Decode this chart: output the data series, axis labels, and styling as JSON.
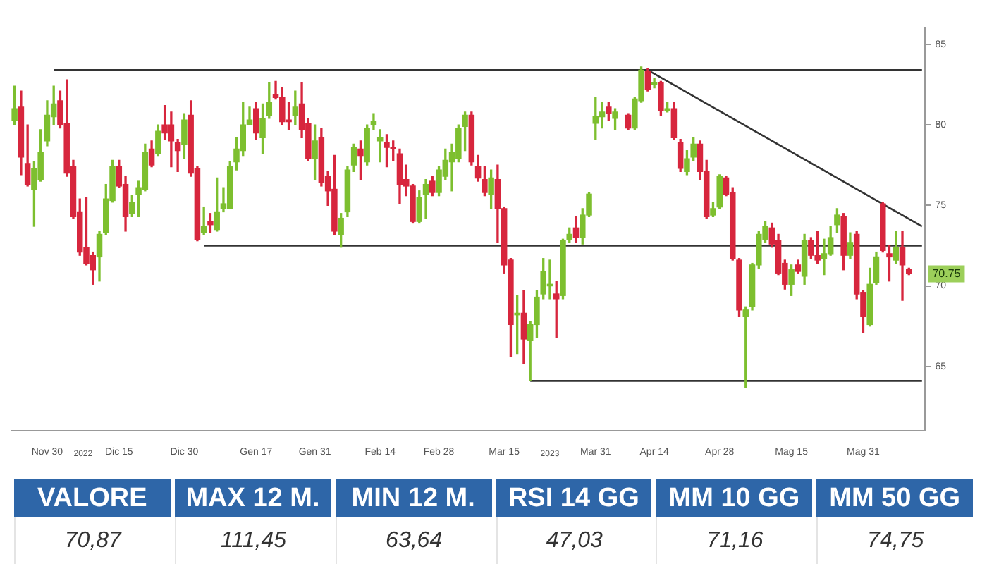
{
  "chart_data": [
    {
      "type": "candlestick",
      "categories": [
        null,
        null,
        null,
        null,
        null,
        "Nov 30",
        null,
        null,
        null,
        null,
        null,
        null,
        null,
        null,
        null,
        null,
        "Dic 15",
        null,
        null,
        null,
        null,
        null,
        null,
        null,
        null,
        null,
        "Dic 30",
        null,
        null,
        null,
        null,
        null,
        null,
        null,
        null,
        null,
        null,
        "Gen 17",
        null,
        null,
        null,
        null,
        null,
        null,
        null,
        null,
        "Gen 31",
        null,
        null,
        null,
        null,
        null,
        null,
        null,
        null,
        null,
        "Feb 14",
        null,
        null,
        null,
        null,
        null,
        null,
        null,
        null,
        "Feb 28",
        null,
        null,
        null,
        null,
        null,
        null,
        null,
        null,
        null,
        "Mar 15",
        null,
        null,
        null,
        null,
        null,
        null,
        null,
        null,
        null,
        null,
        null,
        null,
        null,
        "Mar 31",
        null,
        null,
        null,
        null,
        null,
        null,
        null,
        null,
        "Apr 14",
        null,
        null,
        null,
        null,
        null,
        null,
        null,
        null,
        null,
        "Apr 28",
        null,
        null,
        null,
        null,
        null,
        null,
        null,
        null,
        null,
        null,
        "Mag 15",
        null,
        null,
        null,
        null,
        null,
        null,
        null,
        null,
        null,
        null,
        "Mag 31",
        null,
        null,
        null,
        null,
        null,
        null,
        null,
        null,
        null
      ],
      "ohlc": [
        [
          80.3,
          82.4,
          80.0,
          81.0
        ],
        [
          81.1,
          82.1,
          76.9,
          78.0
        ],
        [
          77.6,
          80.0,
          76.2,
          76.3
        ],
        [
          76.0,
          77.7,
          73.7,
          77.3
        ],
        [
          76.6,
          79.7,
          76.5,
          78.3
        ],
        [
          79.0,
          81.5,
          78.7,
          80.6
        ],
        [
          80.5,
          82.4,
          80.0,
          81.3
        ],
        [
          81.5,
          82.1,
          79.8,
          80.0
        ],
        [
          80.1,
          82.8,
          76.8,
          77.0
        ],
        [
          77.4,
          77.8,
          74.2,
          74.3
        ],
        [
          74.6,
          75.4,
          71.9,
          72.1
        ],
        [
          72.4,
          75.5,
          71.3,
          71.4
        ],
        [
          71.9,
          72.1,
          70.1,
          71.0
        ],
        [
          71.8,
          73.4,
          70.3,
          73.2
        ],
        [
          73.3,
          76.3,
          73.2,
          75.4
        ],
        [
          75.3,
          77.8,
          75.2,
          77.4
        ],
        [
          77.4,
          77.8,
          76.1,
          76.2
        ],
        [
          76.3,
          76.8,
          73.4,
          74.3
        ],
        [
          74.5,
          75.6,
          74.3,
          75.2
        ],
        [
          75.7,
          76.5,
          74.3,
          76.1
        ],
        [
          76.0,
          78.8,
          75.9,
          78.3
        ],
        [
          78.5,
          79.0,
          77.4,
          77.5
        ],
        [
          78.2,
          80.0,
          78.1,
          79.6
        ],
        [
          80.0,
          81.2,
          79.1,
          79.5
        ],
        [
          80.0,
          80.8,
          77.4,
          79.0
        ],
        [
          78.9,
          79.1,
          77.1,
          78.4
        ],
        [
          78.8,
          80.7,
          77.9,
          80.3
        ],
        [
          80.6,
          81.5,
          76.8,
          77.0
        ],
        [
          77.3,
          77.4,
          72.8,
          72.9
        ],
        [
          73.3,
          74.9,
          73.2,
          73.7
        ],
        [
          74.0,
          74.5,
          73.3,
          73.8
        ],
        [
          73.5,
          76.7,
          73.4,
          74.6
        ],
        [
          74.8,
          76.1,
          74.6,
          75.1
        ],
        [
          74.8,
          77.7,
          74.8,
          77.4
        ],
        [
          77.7,
          79.2,
          77.2,
          78.5
        ],
        [
          78.4,
          81.4,
          78.1,
          80.0
        ],
        [
          80.0,
          81.1,
          80.0,
          80.3
        ],
        [
          81.0,
          81.4,
          79.1,
          79.5
        ],
        [
          79.2,
          81.3,
          78.2,
          80.4
        ],
        [
          80.6,
          82.6,
          80.4,
          81.4
        ],
        [
          81.9,
          82.7,
          81.6,
          81.7
        ],
        [
          81.7,
          82.3,
          80.0,
          80.2
        ],
        [
          80.3,
          81.4,
          79.7,
          80.2
        ],
        [
          80.6,
          82.1,
          80.0,
          81.1
        ],
        [
          81.3,
          82.6,
          79.2,
          79.7
        ],
        [
          80.1,
          80.4,
          77.8,
          77.9
        ],
        [
          77.9,
          80.0,
          76.6,
          79.0
        ],
        [
          79.2,
          79.8,
          76.2,
          76.4
        ],
        [
          76.8,
          77.1,
          75.0,
          75.9
        ],
        [
          76.0,
          78.1,
          73.2,
          73.4
        ],
        [
          73.2,
          74.5,
          72.4,
          74.2
        ],
        [
          74.6,
          77.4,
          74.3,
          77.2
        ],
        [
          77.5,
          78.8,
          77.1,
          78.6
        ],
        [
          78.5,
          79.0,
          76.6,
          78.1
        ],
        [
          77.7,
          80.0,
          77.5,
          79.8
        ],
        [
          80.0,
          80.7,
          79.7,
          80.2
        ],
        [
          79.0,
          79.7,
          77.7,
          79.2
        ],
        [
          78.9,
          79.4,
          77.4,
          78.6
        ],
        [
          78.6,
          79.0,
          77.8,
          78.5
        ],
        [
          78.2,
          78.5,
          75.1,
          76.3
        ],
        [
          76.6,
          77.5,
          75.6,
          76.2
        ],
        [
          76.2,
          76.3,
          73.9,
          74.0
        ],
        [
          74.0,
          75.9,
          73.9,
          75.5
        ],
        [
          75.7,
          76.6,
          74.2,
          76.3
        ],
        [
          76.5,
          76.8,
          75.6,
          75.8
        ],
        [
          75.8,
          77.4,
          75.6,
          77.2
        ],
        [
          76.8,
          78.5,
          76.6,
          77.8
        ],
        [
          77.7,
          78.8,
          75.9,
          78.3
        ],
        [
          77.9,
          80.0,
          77.7,
          79.8
        ],
        [
          79.9,
          80.8,
          78.4,
          80.6
        ],
        [
          80.6,
          80.8,
          77.5,
          77.7
        ],
        [
          77.4,
          78.1,
          76.5,
          76.7
        ],
        [
          76.6,
          77.4,
          75.6,
          75.8
        ],
        [
          75.7,
          77.2,
          74.8,
          76.7
        ],
        [
          76.6,
          77.5,
          72.7,
          74.8
        ],
        [
          74.8,
          74.9,
          70.8,
          71.3
        ],
        [
          71.6,
          71.7,
          65.6,
          67.6
        ],
        [
          68.2,
          69.4,
          65.8,
          68.3
        ],
        [
          68.3,
          69.7,
          65.2,
          66.7
        ],
        [
          66.6,
          67.8,
          64.1,
          67.6
        ],
        [
          67.6,
          69.7,
          66.8,
          69.3
        ],
        [
          69.5,
          71.7,
          69.2,
          70.9
        ],
        [
          70.0,
          71.6,
          69.2,
          70.1
        ],
        [
          69.5,
          70.3,
          66.8,
          69.2
        ],
        [
          69.4,
          72.9,
          69.2,
          72.8
        ],
        [
          72.9,
          73.6,
          72.7,
          73.2
        ],
        [
          73.6,
          74.3,
          72.7,
          73.0
        ],
        [
          73.0,
          74.8,
          72.6,
          74.4
        ],
        [
          74.4,
          75.8,
          74.3,
          75.7
        ],
        [
          80.1,
          81.7,
          79.1,
          80.5
        ],
        [
          80.5,
          81.4,
          79.8,
          80.8
        ],
        [
          81.1,
          81.4,
          80.3,
          80.7
        ],
        [
          80.4,
          81.0,
          79.7,
          80.8
        ],
        null,
        [
          80.6,
          80.7,
          79.7,
          79.8
        ],
        [
          79.8,
          81.7,
          79.7,
          81.6
        ],
        [
          81.5,
          83.6,
          81.4,
          83.4
        ],
        [
          83.3,
          83.5,
          82.1,
          82.2
        ],
        [
          82.5,
          82.9,
          82.3,
          82.6
        ],
        [
          82.6,
          82.7,
          80.6,
          80.9
        ],
        [
          80.9,
          81.4,
          80.8,
          81.0
        ],
        [
          81.0,
          81.4,
          79.1,
          79.2
        ],
        [
          78.9,
          79.1,
          77.1,
          77.3
        ],
        [
          77.1,
          78.4,
          76.9,
          77.9
        ],
        [
          78.0,
          79.2,
          77.8,
          78.8
        ],
        [
          78.8,
          79.0,
          76.6,
          77.1
        ],
        [
          77.1,
          77.8,
          74.2,
          74.3
        ],
        [
          74.4,
          75.2,
          74.3,
          74.8
        ],
        [
          74.9,
          76.9,
          74.8,
          76.8
        ],
        [
          76.7,
          76.8,
          75.6,
          75.7
        ],
        [
          75.8,
          76.1,
          71.6,
          71.7
        ],
        [
          71.6,
          71.7,
          68.1,
          68.5
        ],
        [
          68.1,
          68.7,
          63.7,
          68.5
        ],
        [
          68.7,
          71.4,
          68.5,
          71.3
        ],
        [
          71.3,
          73.4,
          71.1,
          73.2
        ],
        [
          72.9,
          74.0,
          72.7,
          73.7
        ],
        [
          73.6,
          73.9,
          72.4,
          72.6
        ],
        [
          72.8,
          73.2,
          70.7,
          70.8
        ],
        [
          71.4,
          71.6,
          69.8,
          70.1
        ],
        [
          70.1,
          71.3,
          69.4,
          71.0
        ],
        [
          71.3,
          71.6,
          70.8,
          70.9
        ],
        [
          70.6,
          73.2,
          70.1,
          72.8
        ],
        [
          72.8,
          73.0,
          71.7,
          71.9
        ],
        [
          71.9,
          73.4,
          71.4,
          71.6
        ],
        [
          71.7,
          72.9,
          70.7,
          72.0
        ],
        [
          72.0,
          73.7,
          71.9,
          73.0
        ],
        [
          73.8,
          74.8,
          73.3,
          74.4
        ],
        [
          74.3,
          74.5,
          71.0,
          71.9
        ],
        [
          71.9,
          73.3,
          71.7,
          72.7
        ],
        [
          73.2,
          73.4,
          69.2,
          69.5
        ],
        [
          69.6,
          69.7,
          67.1,
          68.1
        ],
        [
          67.6,
          71.1,
          67.5,
          70.1
        ],
        [
          70.2,
          72.1,
          70.1,
          71.8
        ],
        [
          75.1,
          75.2,
          72.1,
          72.2
        ],
        [
          72.0,
          72.5,
          70.3,
          71.8
        ],
        [
          71.6,
          73.4,
          71.4,
          72.4
        ],
        [
          72.4,
          73.4,
          69.1,
          71.3
        ],
        [
          71.0,
          71.1,
          70.7,
          70.75
        ],
        null,
        null
      ],
      "colors": [
        "#7dbf2f",
        "#d7263d",
        "#d7263d",
        "#7dbf2f",
        "#7dbf2f",
        "#7dbf2f",
        "#7dbf2f",
        "#d7263d",
        "#d7263d",
        "#d7263d",
        "#d7263d",
        "#d7263d",
        "#d7263d",
        "#7dbf2f",
        "#7dbf2f",
        "#7dbf2f",
        "#d7263d",
        "#d7263d",
        "#7dbf2f",
        "#7dbf2f",
        "#7dbf2f",
        "#d7263d",
        "#7dbf2f",
        "#d7263d",
        "#d7263d",
        "#d7263d",
        "#7dbf2f",
        "#d7263d",
        "#d7263d",
        "#7dbf2f",
        "#d7263d",
        "#7dbf2f",
        "#7dbf2f",
        "#7dbf2f",
        "#7dbf2f",
        "#7dbf2f",
        "#7dbf2f",
        "#d7263d",
        "#7dbf2f",
        "#7dbf2f",
        "#d7263d",
        "#d7263d",
        "#d7263d",
        "#7dbf2f",
        "#d7263d",
        "#d7263d",
        "#7dbf2f",
        "#d7263d",
        "#d7263d",
        "#d7263d",
        "#7dbf2f",
        "#7dbf2f",
        "#7dbf2f",
        "#d7263d",
        "#7dbf2f",
        "#7dbf2f",
        "#7dbf2f",
        "#d7263d",
        "#d7263d",
        "#d7263d",
        "#d7263d",
        "#d7263d",
        "#7dbf2f",
        "#7dbf2f",
        "#d7263d",
        "#7dbf2f",
        "#7dbf2f",
        "#7dbf2f",
        "#7dbf2f",
        "#7dbf2f",
        "#d7263d",
        "#d7263d",
        "#d7263d",
        "#7dbf2f",
        "#d7263d",
        "#d7263d",
        "#d7263d",
        "#7dbf2f",
        "#d7263d",
        "#7dbf2f",
        "#7dbf2f",
        "#7dbf2f",
        "#7dbf2f",
        "#d7263d",
        "#7dbf2f",
        "#7dbf2f",
        "#d7263d",
        "#7dbf2f",
        "#7dbf2f",
        "#7dbf2f",
        "#7dbf2f",
        "#d7263d",
        "#7dbf2f",
        null,
        "#d7263d",
        "#7dbf2f",
        "#7dbf2f",
        "#d7263d",
        "#7dbf2f",
        "#d7263d",
        "#7dbf2f",
        "#d7263d",
        "#d7263d",
        "#7dbf2f",
        "#7dbf2f",
        "#d7263d",
        "#d7263d",
        "#7dbf2f",
        "#7dbf2f",
        "#d7263d",
        "#d7263d",
        "#d7263d",
        "#7dbf2f",
        "#7dbf2f",
        "#7dbf2f",
        "#7dbf2f",
        "#d7263d",
        "#d7263d",
        "#d7263d",
        "#7dbf2f",
        "#d7263d",
        "#7dbf2f",
        "#d7263d",
        "#d7263d",
        "#7dbf2f",
        "#7dbf2f",
        "#7dbf2f",
        "#d7263d",
        "#7dbf2f",
        "#d7263d",
        "#d7263d",
        "#7dbf2f",
        "#7dbf2f",
        "#d7263d",
        "#d7263d",
        "#7dbf2f",
        "#d7263d",
        "#d7263d",
        null,
        null
      ],
      "series": [
        {
          "type": "line",
          "color": "#333333",
          "values": [
            null,
            null,
            null,
            null,
            null,
            null,
            83.4,
            null,
            null,
            null,
            null,
            null,
            null,
            null,
            null,
            null,
            null,
            null,
            null,
            null,
            null,
            null,
            null,
            null,
            null,
            null,
            null,
            null,
            null,
            null,
            null,
            null,
            null,
            null,
            null,
            null,
            null,
            null,
            null,
            null,
            null,
            null,
            null,
            null,
            null,
            null,
            null,
            null,
            null,
            null,
            null,
            null,
            null,
            null,
            null,
            null,
            null,
            null,
            null,
            null,
            null,
            null,
            null,
            null,
            null,
            null,
            null,
            null,
            null,
            null,
            null,
            null,
            null,
            null,
            null,
            null,
            null,
            null,
            null,
            null,
            null,
            null,
            null,
            null,
            null,
            null,
            null,
            null,
            null,
            null,
            null,
            null,
            null,
            null,
            null,
            null,
            null,
            null,
            null,
            null,
            null,
            null,
            null,
            null,
            null,
            null,
            null,
            null,
            null,
            null,
            null,
            null,
            null,
            null,
            null,
            null,
            null,
            null,
            null,
            null,
            null,
            null,
            null,
            null,
            null,
            null,
            null,
            null,
            null,
            null,
            null,
            null,
            null,
            null,
            null,
            null,
            null,
            null,
            null,
            83.4
          ]
        },
        {
          "type": "line",
          "color": "#333333",
          "values": [
            null,
            null,
            null,
            null,
            null,
            null,
            null,
            null,
            null,
            null,
            null,
            null,
            null,
            null,
            null,
            null,
            null,
            null,
            null,
            null,
            null,
            null,
            null,
            null,
            null,
            null,
            null,
            null,
            null,
            72.5,
            null,
            null,
            null,
            null,
            null,
            null,
            null,
            null,
            null,
            null,
            null,
            null,
            null,
            null,
            null,
            null,
            null,
            null,
            null,
            null,
            null,
            null,
            null,
            null,
            null,
            null,
            null,
            null,
            null,
            null,
            null,
            null,
            null,
            null,
            null,
            null,
            null,
            null,
            null,
            null,
            null,
            null,
            null,
            null,
            null,
            null,
            null,
            null,
            null,
            null,
            null,
            null,
            null,
            null,
            null,
            null,
            null,
            null,
            null,
            null,
            null,
            null,
            null,
            null,
            null,
            null,
            null,
            null,
            null,
            null,
            null,
            null,
            null,
            null,
            null,
            null,
            null,
            null,
            null,
            null,
            null,
            null,
            null,
            null,
            null,
            null,
            null,
            null,
            null,
            null,
            null,
            null,
            null,
            null,
            null,
            null,
            null,
            null,
            null,
            null,
            null,
            null,
            null,
            null,
            null,
            null,
            null,
            null,
            null,
            72.5
          ]
        },
        {
          "type": "line",
          "color": "#333333",
          "values": [
            null,
            null,
            null,
            null,
            null,
            null,
            null,
            null,
            null,
            null,
            null,
            null,
            null,
            null,
            null,
            null,
            null,
            null,
            null,
            null,
            null,
            null,
            null,
            null,
            null,
            null,
            null,
            null,
            null,
            null,
            null,
            null,
            null,
            null,
            null,
            null,
            null,
            null,
            null,
            null,
            null,
            null,
            null,
            null,
            null,
            null,
            null,
            null,
            null,
            null,
            null,
            null,
            null,
            null,
            null,
            null,
            null,
            null,
            null,
            null,
            null,
            null,
            null,
            null,
            null,
            null,
            null,
            null,
            null,
            null,
            null,
            null,
            null,
            null,
            null,
            null,
            null,
            null,
            null,
            64.1,
            null,
            null,
            null,
            null,
            null,
            null,
            null,
            null,
            null,
            null,
            null,
            null,
            null,
            null,
            null,
            null,
            null,
            null,
            null,
            null,
            null,
            null,
            null,
            null,
            null,
            null,
            null,
            null,
            null,
            null,
            null,
            null,
            null,
            null,
            null,
            null,
            null,
            null,
            null,
            null,
            null,
            null,
            null,
            null,
            null,
            null,
            null,
            null,
            null,
            null,
            null,
            null,
            null,
            null,
            null,
            null,
            null,
            null,
            null,
            64.1
          ]
        },
        {
          "type": "line",
          "color": "#333333",
          "values": [
            null,
            null,
            null,
            null,
            null,
            null,
            null,
            null,
            null,
            null,
            null,
            null,
            null,
            null,
            null,
            null,
            null,
            null,
            null,
            null,
            null,
            null,
            null,
            null,
            null,
            null,
            null,
            null,
            null,
            null,
            null,
            null,
            null,
            null,
            null,
            null,
            null,
            null,
            null,
            null,
            null,
            null,
            null,
            null,
            null,
            null,
            null,
            null,
            null,
            null,
            null,
            null,
            null,
            null,
            null,
            null,
            null,
            null,
            null,
            null,
            null,
            null,
            null,
            null,
            null,
            null,
            null,
            null,
            null,
            null,
            null,
            null,
            null,
            null,
            null,
            null,
            null,
            null,
            null,
            null,
            null,
            null,
            null,
            null,
            null,
            null,
            null,
            null,
            null,
            null,
            null,
            null,
            null,
            null,
            null,
            null,
            null,
            83.4,
            null,
            null,
            null,
            null,
            null,
            null,
            null,
            null,
            null,
            null,
            null,
            null,
            null,
            null,
            null,
            null,
            null,
            null,
            null,
            null,
            null,
            null,
            null,
            null,
            null,
            null,
            null,
            null,
            null,
            null,
            null,
            null,
            null,
            null,
            null,
            null,
            null,
            null,
            null,
            null,
            null,
            73.7
          ]
        }
      ],
      "ylim": [
        61,
        86
      ],
      "yticks": [
        65,
        70,
        75,
        80,
        85
      ],
      "annotations": [
        {
          "text": "70.75",
          "y": 70.75
        },
        "2022",
        "2023"
      ]
    },
    {
      "type": "other",
      "categories": [
        "VALORE",
        "MAX 12 M.",
        "MIN 12 M.",
        "RSI 14 GG",
        "MM 10 GG",
        "MM 50 GG"
      ],
      "value_labels": [
        "70,87",
        "111,45",
        "63,64",
        "47,03",
        "71,16",
        "74,75"
      ]
    }
  ]
}
